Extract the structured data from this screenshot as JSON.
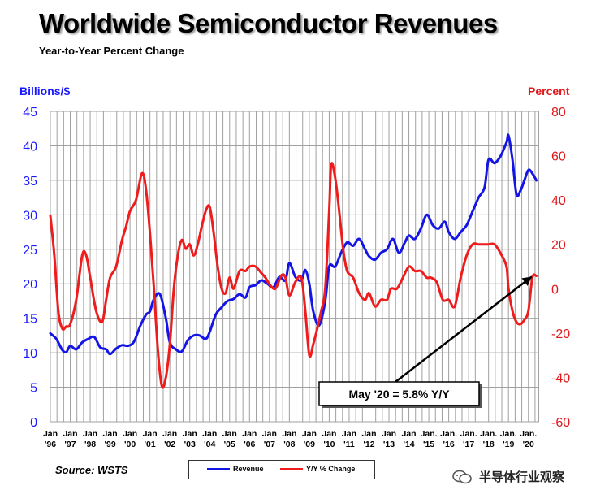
{
  "header": {
    "title": "Worldwide Semiconductor Revenues",
    "subtitle": "Year-to-Year Percent Change"
  },
  "footer": {
    "source": "Source: WSTS",
    "watermark": "半导体行业观察"
  },
  "colors": {
    "revenue": "#1414e6",
    "yoy": "#ee1c1c",
    "left_axis_text": "#1a1aff",
    "right_axis_text": "#e0181c",
    "grid": "#a0a0a0"
  },
  "icons": {
    "watermark_logo": "wechat-icon"
  },
  "chart_data": {
    "type": "line",
    "ylabel_left": "Billions/$",
    "ylabel_right": "Percent",
    "ylim_left": [
      0,
      45
    ],
    "ylim_right": [
      -60,
      80
    ],
    "yticks_left": [
      0,
      5,
      10,
      15,
      20,
      25,
      30,
      35,
      40,
      45
    ],
    "yticks_right": [
      -60,
      -40,
      -20,
      0,
      20,
      40,
      60,
      80
    ],
    "xlim": [
      1996.0,
      2020.5
    ],
    "xticks": [
      {
        "top": "Jan",
        "bottom": "'96",
        "x": 1996
      },
      {
        "top": "Jan",
        "bottom": "'97",
        "x": 1997
      },
      {
        "top": "Jan",
        "bottom": "'98",
        "x": 1998
      },
      {
        "top": "Jan",
        "bottom": "'99",
        "x": 1999
      },
      {
        "top": "Jan",
        "bottom": "'00",
        "x": 2000
      },
      {
        "top": "Jan",
        "bottom": "'01",
        "x": 2001
      },
      {
        "top": "Jan",
        "bottom": "'02",
        "x": 2002
      },
      {
        "top": "Jan",
        "bottom": "'03",
        "x": 2003
      },
      {
        "top": "Jan",
        "bottom": "'04",
        "x": 2004
      },
      {
        "top": "Jan",
        "bottom": "'05",
        "x": 2005
      },
      {
        "top": "Jan",
        "bottom": "'06",
        "x": 2006
      },
      {
        "top": "Jan",
        "bottom": "'07",
        "x": 2007
      },
      {
        "top": "Jan",
        "bottom": "'08",
        "x": 2008
      },
      {
        "top": "Jan",
        "bottom": "'09",
        "x": 2009
      },
      {
        "top": "Jan",
        "bottom": "'10",
        "x": 2010
      },
      {
        "top": "Jan",
        "bottom": "'11",
        "x": 2011
      },
      {
        "top": "Jan",
        "bottom": "'12",
        "x": 2012
      },
      {
        "top": "Jan",
        "bottom": "'13",
        "x": 2013
      },
      {
        "top": "Jan",
        "bottom": "'14",
        "x": 2014
      },
      {
        "top": "Jan.",
        "bottom": "'15",
        "x": 2015
      },
      {
        "top": "Jan.",
        "bottom": "'16",
        "x": 2016
      },
      {
        "top": "Jan.",
        "bottom": "'17",
        "x": 2017
      },
      {
        "top": "Jan.",
        "bottom": "'18",
        "x": 2018
      },
      {
        "top": "Jan.",
        "bottom": "'19",
        "x": 2019
      },
      {
        "top": "Jan.",
        "bottom": "'20",
        "x": 2020
      }
    ],
    "grid": true,
    "legend_position": "bottom-center",
    "series": [
      {
        "name": "Revenue",
        "axis": "left",
        "x": [
          1996.0,
          1996.3,
          1996.6,
          1996.8,
          1997.0,
          1997.3,
          1997.6,
          1997.9,
          1998.2,
          1998.5,
          1998.8,
          1999.0,
          1999.3,
          1999.6,
          1999.9,
          2000.2,
          2000.5,
          2000.8,
          2001.0,
          2001.2,
          2001.5,
          2001.8,
          2002.0,
          2002.3,
          2002.6,
          2002.9,
          2003.2,
          2003.5,
          2003.8,
          2004.0,
          2004.3,
          2004.6,
          2004.9,
          2005.2,
          2005.5,
          2005.8,
          2006.0,
          2006.3,
          2006.6,
          2006.9,
          2007.2,
          2007.5,
          2007.8,
          2008.0,
          2008.3,
          2008.6,
          2008.8,
          2009.0,
          2009.2,
          2009.5,
          2009.8,
          2010.0,
          2010.3,
          2010.6,
          2010.9,
          2011.2,
          2011.5,
          2011.8,
          2012.0,
          2012.3,
          2012.6,
          2012.9,
          2013.2,
          2013.5,
          2013.8,
          2014.0,
          2014.3,
          2014.6,
          2014.9,
          2015.2,
          2015.5,
          2015.8,
          2016.0,
          2016.3,
          2016.6,
          2016.9,
          2017.2,
          2017.5,
          2017.8,
          2018.0,
          2018.3,
          2018.6,
          2018.9,
          2019.0,
          2019.2,
          2019.4,
          2019.6,
          2019.8,
          2020.0,
          2020.2,
          2020.4
        ],
        "values": [
          12.8,
          12.0,
          10.4,
          10.1,
          11.0,
          10.5,
          11.5,
          12.0,
          12.3,
          10.8,
          10.5,
          9.8,
          10.6,
          11.1,
          11.0,
          11.6,
          13.8,
          15.5,
          16.0,
          17.8,
          18.5,
          15.0,
          11.5,
          10.5,
          10.2,
          11.8,
          12.5,
          12.5,
          12.0,
          13.0,
          15.5,
          16.6,
          17.5,
          17.8,
          18.5,
          18.0,
          19.5,
          19.8,
          20.5,
          20.0,
          19.5,
          21.0,
          20.5,
          23.0,
          21.0,
          20.5,
          22.0,
          20.0,
          16.0,
          14.0,
          17.5,
          22.5,
          22.5,
          24.5,
          26.0,
          25.5,
          26.5,
          25.0,
          24.0,
          23.5,
          24.5,
          25.0,
          26.5,
          24.5,
          26.0,
          27.0,
          26.5,
          28.0,
          30.0,
          28.5,
          28.0,
          29.0,
          27.5,
          26.5,
          27.5,
          28.5,
          30.5,
          32.5,
          34.0,
          38.0,
          37.5,
          38.5,
          40.5,
          41.5,
          38.0,
          33.0,
          33.5,
          35.0,
          36.5,
          36.0,
          35.0
        ]
      },
      {
        "name": "Y/Y % Change",
        "axis": "right",
        "x": [
          1996.0,
          1996.2,
          1996.4,
          1996.6,
          1996.8,
          1997.0,
          1997.3,
          1997.6,
          1997.8,
          1998.0,
          1998.3,
          1998.6,
          1998.8,
          1999.0,
          1999.3,
          1999.6,
          1999.8,
          2000.0,
          2000.3,
          2000.6,
          2000.8,
          2001.0,
          2001.2,
          2001.4,
          2001.6,
          2001.8,
          2002.0,
          2002.2,
          2002.4,
          2002.6,
          2002.8,
          2003.0,
          2003.2,
          2003.4,
          2003.6,
          2003.8,
          2004.0,
          2004.2,
          2004.4,
          2004.6,
          2004.8,
          2005.0,
          2005.2,
          2005.5,
          2005.8,
          2006.0,
          2006.3,
          2006.6,
          2006.8,
          2007.0,
          2007.3,
          2007.6,
          2007.8,
          2008.0,
          2008.3,
          2008.6,
          2008.8,
          2009.0,
          2009.2,
          2009.4,
          2009.6,
          2009.8,
          2010.0,
          2010.1,
          2010.3,
          2010.5,
          2010.7,
          2010.9,
          2011.2,
          2011.5,
          2011.8,
          2012.0,
          2012.3,
          2012.6,
          2012.9,
          2013.1,
          2013.4,
          2013.7,
          2014.0,
          2014.3,
          2014.6,
          2014.9,
          2015.1,
          2015.4,
          2015.7,
          2016.0,
          2016.3,
          2016.6,
          2016.9,
          2017.2,
          2017.5,
          2017.8,
          2018.0,
          2018.3,
          2018.6,
          2018.9,
          2019.0,
          2019.2,
          2019.4,
          2019.6,
          2019.8,
          2020.0,
          2020.2,
          2020.4
        ],
        "values": [
          33,
          15,
          -10,
          -18,
          -17,
          -16,
          -5,
          15,
          15,
          5,
          -10,
          -15,
          -5,
          5,
          10,
          22,
          28,
          35,
          40,
          52,
          45,
          25,
          0,
          -28,
          -44,
          -40,
          -25,
          0,
          15,
          22,
          18,
          20,
          15,
          20,
          28,
          35,
          37,
          25,
          10,
          0,
          -2,
          5,
          0,
          8,
          8,
          10,
          10,
          7,
          5,
          2,
          0,
          6,
          5,
          -3,
          3,
          5,
          -10,
          -30,
          -25,
          -18,
          -10,
          0,
          35,
          56,
          50,
          35,
          18,
          8,
          5,
          -2,
          -5,
          -2,
          -8,
          -5,
          -5,
          0,
          0,
          5,
          10,
          8,
          8,
          5,
          5,
          3,
          -5,
          -5,
          -8,
          5,
          15,
          20,
          20,
          20,
          20,
          20,
          16,
          10,
          0,
          -10,
          -15,
          -16,
          -14,
          -10,
          5,
          5.8
        ]
      }
    ],
    "annotation": {
      "text": "May '20 = 5.8% Y/Y",
      "point": {
        "x": 2020.33,
        "y": 5.8,
        "axis": "right"
      }
    }
  }
}
